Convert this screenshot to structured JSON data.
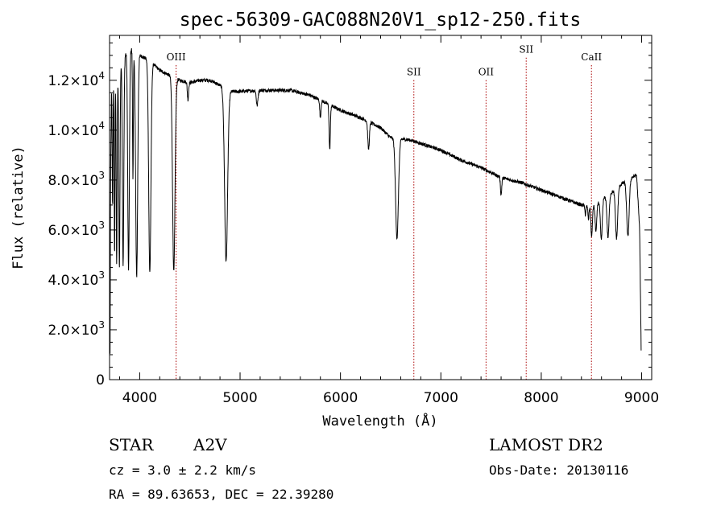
{
  "chart_data": {
    "type": "line",
    "title": "spec-56309-GAC088N20V1_sp12-250.fits",
    "xlabel": "Wavelength (Å)",
    "ylabel": "Flux (relative)",
    "xlim": [
      3700,
      9100
    ],
    "ylim": [
      0,
      13800
    ],
    "x_ticks": [
      4000,
      5000,
      6000,
      7000,
      8000,
      9000
    ],
    "y_ticks": [
      {
        "value": 0,
        "mantissa": "0",
        "exponent": ""
      },
      {
        "value": 2000,
        "mantissa": "2.0×10",
        "exponent": "3"
      },
      {
        "value": 4000,
        "mantissa": "4.0×10",
        "exponent": "3"
      },
      {
        "value": 6000,
        "mantissa": "6.0×10",
        "exponent": "3"
      },
      {
        "value": 8000,
        "mantissa": "8.0×10",
        "exponent": "3"
      },
      {
        "value": 10000,
        "mantissa": "1.0×10",
        "exponent": "4"
      },
      {
        "value": 12000,
        "mantissa": "1.2×10",
        "exponent": "4"
      }
    ],
    "line_markers": [
      {
        "label": "OIII",
        "x": 4363,
        "label_y": 12800
      },
      {
        "label": "SII",
        "x": 6731,
        "label_y": 12200
      },
      {
        "label": "OII",
        "x": 7450,
        "label_y": 12200
      },
      {
        "label": "SII",
        "x": 7850,
        "label_y": 13100
      },
      {
        "label": "CaII",
        "x": 8500,
        "label_y": 12800
      }
    ],
    "continuum": [
      [
        3705,
        1000
      ],
      [
        3710,
        8000
      ],
      [
        3720,
        11800
      ],
      [
        3760,
        12400
      ],
      [
        3800,
        12700
      ],
      [
        3850,
        13000
      ],
      [
        3900,
        13300
      ],
      [
        3950,
        13100
      ],
      [
        4000,
        13000
      ],
      [
        4100,
        12800
      ],
      [
        4200,
        12400
      ],
      [
        4300,
        12200
      ],
      [
        4400,
        12000
      ],
      [
        4500,
        11900
      ],
      [
        4600,
        12000
      ],
      [
        4700,
        12000
      ],
      [
        4800,
        11800
      ],
      [
        4900,
        11550
      ],
      [
        5000,
        11550
      ],
      [
        5200,
        11600
      ],
      [
        5500,
        11600
      ],
      [
        5700,
        11400
      ],
      [
        5900,
        11000
      ],
      [
        6000,
        10800
      ],
      [
        6200,
        10500
      ],
      [
        6400,
        10100
      ],
      [
        6500,
        9700
      ],
      [
        6700,
        9600
      ],
      [
        7000,
        9200
      ],
      [
        7200,
        8800
      ],
      [
        7400,
        8500
      ],
      [
        7600,
        8100
      ],
      [
        7800,
        7900
      ],
      [
        8000,
        7600
      ],
      [
        8200,
        7300
      ],
      [
        8400,
        7000
      ],
      [
        8500,
        6900
      ],
      [
        8700,
        7500
      ],
      [
        8850,
        8000
      ],
      [
        8950,
        8200
      ],
      [
        8980,
        6000
      ],
      [
        8995,
        1200
      ]
    ],
    "absorption_lines": [
      {
        "x": 3730,
        "w": 4,
        "depth": 5000
      },
      {
        "x": 3750,
        "w": 4,
        "depth": 7300
      },
      {
        "x": 3771,
        "w": 5,
        "depth": 7800
      },
      {
        "x": 3798,
        "w": 6,
        "depth": 8200
      },
      {
        "x": 3835,
        "w": 7,
        "depth": 8300
      },
      {
        "x": 3889,
        "w": 8,
        "depth": 8800
      },
      {
        "x": 3933,
        "w": 4,
        "depth": 5000
      },
      {
        "x": 3970,
        "w": 10,
        "depth": 8900
      },
      {
        "x": 4101,
        "w": 11,
        "depth": 8500
      },
      {
        "x": 4340,
        "w": 12,
        "depth": 7800
      },
      {
        "x": 4481,
        "w": 6,
        "depth": 700
      },
      {
        "x": 4861,
        "w": 15,
        "depth": 6900
      },
      {
        "x": 5170,
        "w": 8,
        "depth": 600
      },
      {
        "x": 5800,
        "w": 6,
        "depth": 700
      },
      {
        "x": 5893,
        "w": 6,
        "depth": 1800
      },
      {
        "x": 6280,
        "w": 8,
        "depth": 1100
      },
      {
        "x": 6563,
        "w": 14,
        "depth": 4000
      },
      {
        "x": 7600,
        "w": 6,
        "depth": 700
      },
      {
        "x": 8440,
        "w": 4,
        "depth": 400
      },
      {
        "x": 8470,
        "w": 5,
        "depth": 500
      },
      {
        "x": 8502,
        "w": 7,
        "depth": 1200
      },
      {
        "x": 8545,
        "w": 8,
        "depth": 1100
      },
      {
        "x": 8598,
        "w": 9,
        "depth": 1600
      },
      {
        "x": 8665,
        "w": 10,
        "depth": 1700
      },
      {
        "x": 8750,
        "w": 11,
        "depth": 2000
      },
      {
        "x": 8863,
        "w": 12,
        "depth": 2300
      }
    ]
  },
  "footer": {
    "object_type": "STAR",
    "subclass": "A2V",
    "cz": "cz = 3.0 ± 2.2 km/s",
    "coords": "RA =  89.63653, DEC =  22.39280",
    "survey": "LAMOST DR2",
    "obs_date": "Obs-Date: 20130116"
  },
  "colors": {
    "spectrum": "#000000",
    "marker_line": "#aa0000",
    "axes": "#000000"
  }
}
